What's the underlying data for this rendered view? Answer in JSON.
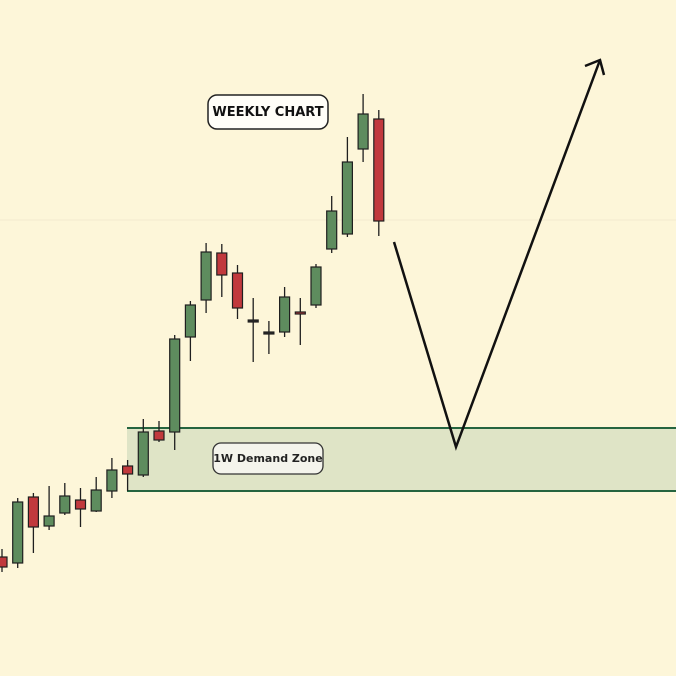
{
  "chart_data": {
    "type": "candlestick",
    "title": "WEEKLY CHART",
    "ylim": [
      0,
      676
    ],
    "up_color": "#5e8c5e",
    "down_color": "#c1393d",
    "flat_color": "#2b2b2b",
    "open": [
      119,
      113,
      179,
      150,
      163,
      176,
      165,
      185,
      210,
      201,
      245,
      244,
      339,
      376,
      423,
      403,
      356,
      344,
      344,
      364,
      371,
      427,
      442,
      527,
      557
    ],
    "high": [
      127,
      178,
      183,
      190,
      193,
      188,
      199,
      218,
      216,
      257,
      255,
      341,
      375,
      433,
      432,
      411,
      378,
      355,
      389,
      378,
      412,
      480,
      539,
      582,
      566
    ],
    "low": [
      104,
      108,
      123,
      146,
      161,
      149,
      164,
      178,
      185,
      199,
      234,
      226,
      315,
      363,
      379,
      357,
      314,
      322,
      339,
      331,
      368,
      423,
      439,
      514,
      440
    ],
    "close": [
      109,
      174,
      149,
      160,
      180,
      167,
      186,
      206,
      202,
      244,
      236,
      337,
      371,
      424,
      401,
      368,
      356,
      344,
      379,
      362,
      409,
      465,
      514,
      562,
      455
    ],
    "zone": {
      "label": "1W Demand Zone",
      "top": 248,
      "bottom": 185,
      "color": "#dfe4c6",
      "edge_color": "#25643f"
    }
  }
}
